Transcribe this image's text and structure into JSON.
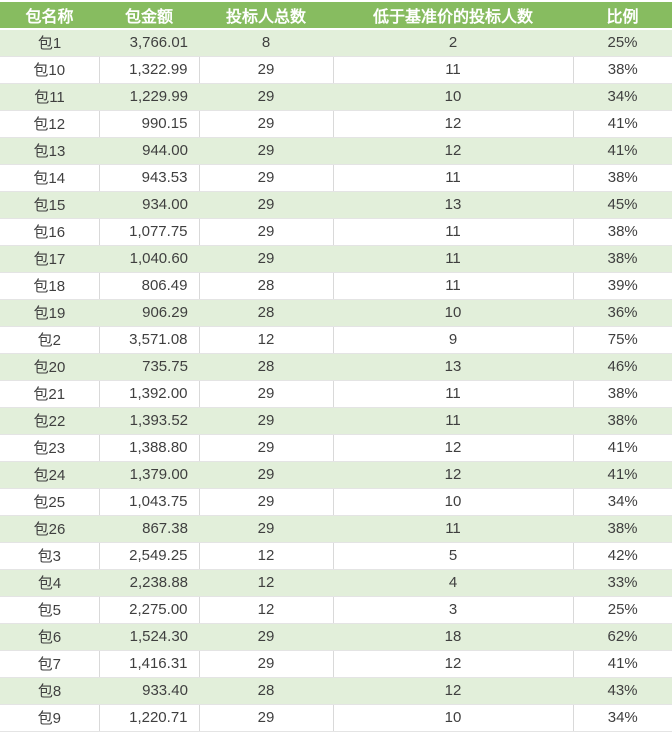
{
  "colors": {
    "header_bg": "#87BC60",
    "header_text": "#FFFFFF",
    "stripe_bg": "#E2EFDA",
    "row_bg": "#FFFFFF",
    "gridline": "#D9D9D9",
    "hline": "#E4E4E4",
    "text": "#3F3F3F"
  },
  "table": {
    "columns": [
      "包名称",
      "包金额",
      "投标人总数",
      "低于基准价的投标人数",
      "比例"
    ],
    "rows": [
      {
        "name": "包1",
        "amount": "3,766.01",
        "total": "8",
        "below": "2",
        "ratio": "25%"
      },
      {
        "name": "包10",
        "amount": "1,322.99",
        "total": "29",
        "below": "11",
        "ratio": "38%"
      },
      {
        "name": "包11",
        "amount": "1,229.99",
        "total": "29",
        "below": "10",
        "ratio": "34%"
      },
      {
        "name": "包12",
        "amount": "990.15",
        "total": "29",
        "below": "12",
        "ratio": "41%"
      },
      {
        "name": "包13",
        "amount": "944.00",
        "total": "29",
        "below": "12",
        "ratio": "41%"
      },
      {
        "name": "包14",
        "amount": "943.53",
        "total": "29",
        "below": "11",
        "ratio": "38%"
      },
      {
        "name": "包15",
        "amount": "934.00",
        "total": "29",
        "below": "13",
        "ratio": "45%"
      },
      {
        "name": "包16",
        "amount": "1,077.75",
        "total": "29",
        "below": "11",
        "ratio": "38%"
      },
      {
        "name": "包17",
        "amount": "1,040.60",
        "total": "29",
        "below": "11",
        "ratio": "38%"
      },
      {
        "name": "包18",
        "amount": "806.49",
        "total": "28",
        "below": "11",
        "ratio": "39%"
      },
      {
        "name": "包19",
        "amount": "906.29",
        "total": "28",
        "below": "10",
        "ratio": "36%"
      },
      {
        "name": "包2",
        "amount": "3,571.08",
        "total": "12",
        "below": "9",
        "ratio": "75%"
      },
      {
        "name": "包20",
        "amount": "735.75",
        "total": "28",
        "below": "13",
        "ratio": "46%"
      },
      {
        "name": "包21",
        "amount": "1,392.00",
        "total": "29",
        "below": "11",
        "ratio": "38%"
      },
      {
        "name": "包22",
        "amount": "1,393.52",
        "total": "29",
        "below": "11",
        "ratio": "38%"
      },
      {
        "name": "包23",
        "amount": "1,388.80",
        "total": "29",
        "below": "12",
        "ratio": "41%"
      },
      {
        "name": "包24",
        "amount": "1,379.00",
        "total": "29",
        "below": "12",
        "ratio": "41%"
      },
      {
        "name": "包25",
        "amount": "1,043.75",
        "total": "29",
        "below": "10",
        "ratio": "34%"
      },
      {
        "name": "包26",
        "amount": "867.38",
        "total": "29",
        "below": "11",
        "ratio": "38%"
      },
      {
        "name": "包3",
        "amount": "2,549.25",
        "total": "12",
        "below": "5",
        "ratio": "42%"
      },
      {
        "name": "包4",
        "amount": "2,238.88",
        "total": "12",
        "below": "4",
        "ratio": "33%"
      },
      {
        "name": "包5",
        "amount": "2,275.00",
        "total": "12",
        "below": "3",
        "ratio": "25%"
      },
      {
        "name": "包6",
        "amount": "1,524.30",
        "total": "29",
        "below": "18",
        "ratio": "62%"
      },
      {
        "name": "包7",
        "amount": "1,416.31",
        "total": "29",
        "below": "12",
        "ratio": "41%"
      },
      {
        "name": "包8",
        "amount": "933.40",
        "total": "28",
        "below": "12",
        "ratio": "43%"
      },
      {
        "name": "包9",
        "amount": "1,220.71",
        "total": "29",
        "below": "10",
        "ratio": "34%"
      }
    ]
  }
}
